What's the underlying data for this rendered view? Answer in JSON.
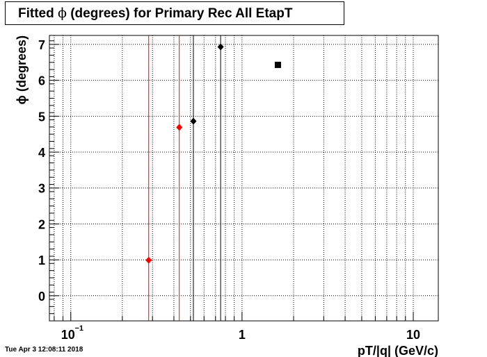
{
  "chart_data": {
    "type": "scatter",
    "title": "Fitted ϕ (degrees) for Primary Rec All EtapT",
    "title_prefix": "Fitted ",
    "title_symbol": "ϕ",
    "title_suffix": " (degrees) for Primary Rec All EtapT",
    "xlabel": "pT/|q| (GeV/c)",
    "ylabel": "ϕ (degrees)",
    "xscale": "log",
    "xlim": [
      0.075,
      14.0
    ],
    "ylim": [
      -0.7,
      7.25
    ],
    "grid": true,
    "x_tick_labels": [
      {
        "value": 0.1,
        "base": "10",
        "exp": "−1"
      },
      {
        "value": 1,
        "base": "1",
        "exp": ""
      },
      {
        "value": 10,
        "base": "10",
        "exp": ""
      }
    ],
    "y_ticks": [
      0,
      1,
      2,
      3,
      4,
      5,
      6,
      7
    ],
    "y_tick_labels": [
      "0",
      "1",
      "2",
      "3",
      "4",
      "5",
      "6",
      "7"
    ],
    "series": [
      {
        "color": "#ff0000",
        "marker": "diamond",
        "points": [
          {
            "x": 0.285,
            "y": 0.99
          },
          {
            "x": 0.43,
            "y": 4.69
          }
        ]
      },
      {
        "color": "#000000",
        "marker": "diamond",
        "points": [
          {
            "x": 0.52,
            "y": 4.86
          },
          {
            "x": 0.75,
            "y": 6.93
          }
        ]
      },
      {
        "color": "#000000",
        "marker": "square",
        "points": [
          {
            "x": 1.62,
            "y": 6.43
          }
        ]
      }
    ],
    "vertical_lines": [
      {
        "x": 0.285,
        "color": "#ff0000"
      },
      {
        "x": 0.43,
        "color": "#ff0000"
      },
      {
        "x": 0.52,
        "color": "#000000"
      },
      {
        "x": 0.75,
        "color": "#000000"
      }
    ]
  },
  "footer": {
    "timestamp": "Tue Apr  3 12:08:11 2018"
  }
}
